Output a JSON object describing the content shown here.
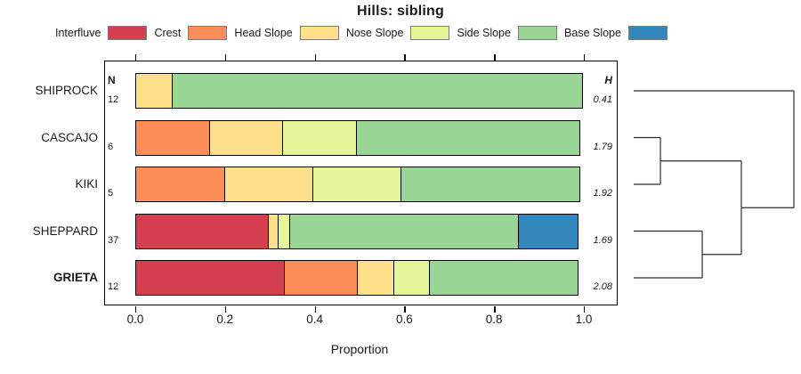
{
  "title": "Hills: sibling",
  "chart_data": {
    "type": "bar",
    "orientation": "horizontal",
    "stacked": true,
    "title": "Hills: sibling",
    "xlabel": "Proportion",
    "xlim": [
      0,
      1
    ],
    "xticks": [
      0,
      0.2,
      0.4,
      0.6,
      0.8,
      1.0
    ],
    "xtick_labels": [
      "0.0",
      "0.2",
      "0.4",
      "0.6",
      "0.8",
      "1.0"
    ],
    "grid": false,
    "legend_position": "top",
    "legend": [
      {
        "label": "Interfluve",
        "color": "#D53E4F"
      },
      {
        "label": "Crest",
        "color": "#FC8D59"
      },
      {
        "label": "Head Slope",
        "color": "#FEE08B"
      },
      {
        "label": "Nose Slope",
        "color": "#E6F598"
      },
      {
        "label": "Side Slope",
        "color": "#99D594"
      },
      {
        "label": "Base Slope",
        "color": "#3288BD"
      }
    ],
    "column_headers": {
      "n": "N",
      "h": "H"
    },
    "rows": [
      {
        "label": "SHIPROCK",
        "n": "12",
        "h": "0.41",
        "emphasis": false,
        "segments": [
          {
            "category": "Head Slope",
            "value": 0.0833
          },
          {
            "category": "Side Slope",
            "value": 0.9167
          }
        ]
      },
      {
        "label": "CASCAJO",
        "n": "6",
        "h": "1.79",
        "emphasis": false,
        "segments": [
          {
            "category": "Crest",
            "value": 0.1667
          },
          {
            "category": "Head Slope",
            "value": 0.1667
          },
          {
            "category": "Nose Slope",
            "value": 0.1667
          },
          {
            "category": "Side Slope",
            "value": 0.5
          }
        ]
      },
      {
        "label": "KIKI",
        "n": "5",
        "h": "1.92",
        "emphasis": false,
        "segments": [
          {
            "category": "Crest",
            "value": 0.2
          },
          {
            "category": "Head Slope",
            "value": 0.2
          },
          {
            "category": "Nose Slope",
            "value": 0.2
          },
          {
            "category": "Side Slope",
            "value": 0.4
          }
        ]
      },
      {
        "label": "SHEPPARD",
        "n": "37",
        "h": "1.69",
        "emphasis": false,
        "segments": [
          {
            "category": "Interfluve",
            "value": 0.2973
          },
          {
            "category": "Head Slope",
            "value": 0.027
          },
          {
            "category": "Nose Slope",
            "value": 0.027
          },
          {
            "category": "Side Slope",
            "value": 0.5135
          },
          {
            "category": "Base Slope",
            "value": 0.1351
          }
        ]
      },
      {
        "label": "GRIETA",
        "n": "12",
        "h": "2.08",
        "emphasis": true,
        "segments": [
          {
            "category": "Interfluve",
            "value": 0.3333
          },
          {
            "category": "Crest",
            "value": 0.1667
          },
          {
            "category": "Head Slope",
            "value": 0.0833
          },
          {
            "category": "Nose Slope",
            "value": 0.0833
          },
          {
            "category": "Side Slope",
            "value": 0.3333
          }
        ]
      }
    ],
    "dendrogram": {
      "leaf_order": [
        "SHIPROCK",
        "CASCAJO",
        "KIKI",
        "SHEPPARD",
        "GRIETA"
      ],
      "merges": [
        {
          "children": [
            "L1",
            "L2"
          ],
          "height": 0.167
        },
        {
          "children": [
            "L3",
            "L4"
          ],
          "height": 0.428
        },
        {
          "children": [
            "M0",
            "M1"
          ],
          "height": 0.672
        },
        {
          "children": [
            "L0",
            "M2"
          ],
          "height": 1.0
        }
      ]
    }
  }
}
